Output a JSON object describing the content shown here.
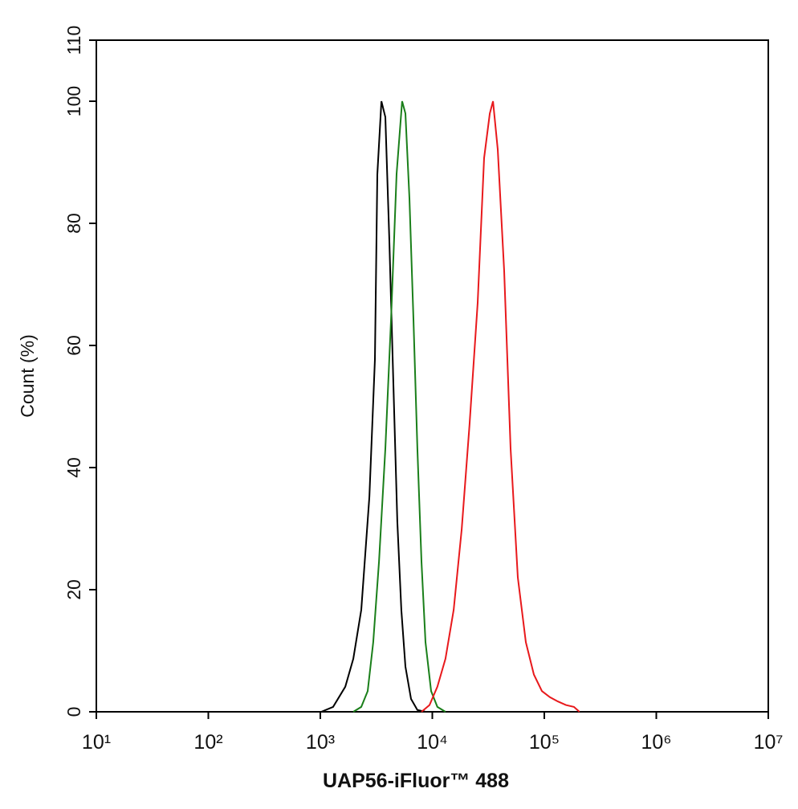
{
  "chart_data": {
    "type": "line",
    "xscale": "log",
    "xlabel": "UAP56-iFluor™ 488",
    "ylabel": "Count  (%)",
    "xlim": [
      10,
      10000000
    ],
    "xticks": [
      {
        "value": 10,
        "label": "10¹"
      },
      {
        "value": 100,
        "label": "10²"
      },
      {
        "value": 1000,
        "label": "10³"
      },
      {
        "value": 10000,
        "label": "10⁴"
      },
      {
        "value": 100000,
        "label": "10⁵"
      },
      {
        "value": 1000000,
        "label": "10⁶"
      },
      {
        "value": 10000000,
        "label": "10⁷"
      }
    ],
    "ylim": [
      0,
      110
    ],
    "yticks": [
      0,
      20,
      40,
      60,
      80,
      100,
      110
    ],
    "series": [
      {
        "color": "#000000",
        "x": [
          1020,
          1300,
          1670,
          1970,
          2320,
          2740,
          3070,
          3230,
          3510,
          3810,
          4130,
          4490,
          4870,
          5290,
          5750,
          6460,
          7360,
          8690
        ],
        "values": [
          0,
          0.8,
          4.1,
          8.7,
          16.7,
          35.2,
          57.7,
          88,
          100,
          97.4,
          77.5,
          53.7,
          31.2,
          16.7,
          7.4,
          2.1,
          0.3,
          0
        ]
      },
      {
        "color": "#1a7f1a",
        "x": [
          1970,
          2320,
          2650,
          2970,
          3340,
          3810,
          4280,
          4800,
          5380,
          5750,
          6250,
          6790,
          7360,
          8000,
          8690,
          9750,
          11100,
          13100
        ],
        "values": [
          0,
          0.8,
          3.4,
          11.4,
          24.6,
          43.1,
          64.3,
          88.1,
          100,
          98,
          84.1,
          64.3,
          43.1,
          24.6,
          11.4,
          3.4,
          0.8,
          0
        ]
      },
      {
        "color": "#e8191c",
        "x": [
          8000,
          9440,
          11100,
          13100,
          15500,
          18300,
          21500,
          25400,
          29000,
          32600,
          34800,
          38400,
          43800,
          50000,
          58000,
          68400,
          80700,
          95100,
          112000,
          132000,
          156000,
          184000,
          206000
        ],
        "values": [
          0,
          1.1,
          4.1,
          8.7,
          16.7,
          29.9,
          47.1,
          67,
          90.7,
          98,
          100,
          92.1,
          72.2,
          43.1,
          22,
          11.4,
          6.1,
          3.4,
          2.4,
          1.7,
          1.1,
          0.8,
          0
        ]
      }
    ]
  }
}
